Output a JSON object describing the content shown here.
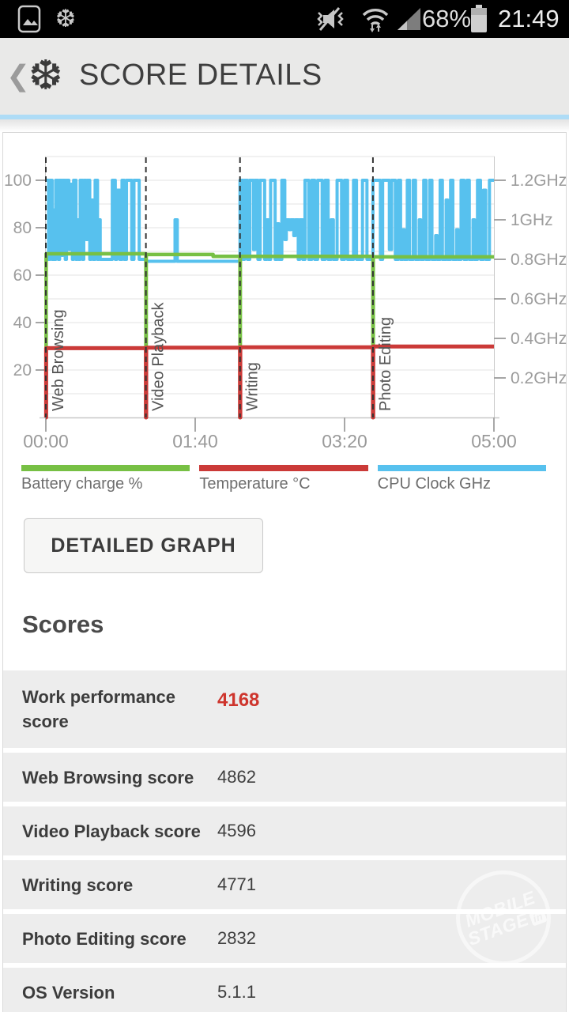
{
  "status_bar": {
    "time": "21:49",
    "battery": "68%"
  },
  "icons": {
    "back": "❮",
    "snowflake": "❆"
  },
  "header": {
    "title": "SCORE DETAILS"
  },
  "button": {
    "label": "DETAILED GRAPH"
  },
  "watermark": {
    "line1": "MOBILE",
    "line2": "STAGE",
    "badge": "in"
  },
  "scores": {
    "heading": "Scores",
    "rows": [
      {
        "label": "Work performance score",
        "value": "4168",
        "highlight": true
      },
      {
        "label": "Web Browsing score",
        "value": "4862",
        "highlight": false
      },
      {
        "label": "Video Playback score",
        "value": "4596",
        "highlight": false
      },
      {
        "label": "Writing score",
        "value": "4771",
        "highlight": false
      },
      {
        "label": "Photo Editing score",
        "value": "2832",
        "highlight": false
      },
      {
        "label": "OS Version",
        "value": "5.1.1",
        "highlight": false
      }
    ]
  },
  "chart_data": {
    "type": "line",
    "duration_s": 300,
    "x_ticks": [
      {
        "s": 0,
        "label": "00:00"
      },
      {
        "s": 100,
        "label": "01:40"
      },
      {
        "s": 200,
        "label": "03:20"
      },
      {
        "s": 300,
        "label": "05:00"
      }
    ],
    "y_left_ticks": [
      {
        "v": 100,
        "label": "100"
      },
      {
        "v": 80,
        "label": "80"
      },
      {
        "v": 60,
        "label": "60"
      },
      {
        "v": 40,
        "label": "40"
      },
      {
        "v": 20,
        "label": "20"
      }
    ],
    "y_right_ticks": [
      {
        "ghz": 1.2,
        "label": "1.2GHz"
      },
      {
        "ghz": 1.0,
        "label": "1GHz"
      },
      {
        "ghz": 0.8,
        "label": "0.8GHz"
      },
      {
        "ghz": 0.6,
        "label": "0.6GHz"
      },
      {
        "ghz": 0.4,
        "label": "0.4GHz"
      },
      {
        "ghz": 0.2,
        "label": "0.2GHz"
      }
    ],
    "phases": [
      {
        "label": "Web Browsing",
        "start_s": 0
      },
      {
        "label": "Video Playback",
        "start_s": 67
      },
      {
        "label": "Writing",
        "start_s": 130
      },
      {
        "label": "Photo Editing",
        "start_s": 219
      }
    ],
    "series": [
      {
        "name": "Battery charge %",
        "color": "#77c044",
        "axis": "left",
        "unit": "%",
        "runs": [
          [
            0,
            0.2,
            0
          ],
          [
            0.2,
            67,
            69
          ],
          [
            67,
            67.2,
            0
          ],
          [
            67.2,
            112,
            68.7
          ],
          [
            112,
            130,
            67.9
          ],
          [
            130,
            130.2,
            0
          ],
          [
            130.2,
            219,
            67.9
          ],
          [
            219,
            219.2,
            0
          ],
          [
            219.2,
            300,
            67.7
          ]
        ]
      },
      {
        "name": "Temperature °C",
        "color": "#cb3a38",
        "axis": "left",
        "unit": "°C",
        "runs": [
          [
            0,
            0.2,
            0
          ],
          [
            0.2,
            67,
            29.2
          ],
          [
            67,
            67.2,
            0
          ],
          [
            67.2,
            130,
            29.4
          ],
          [
            130,
            130.2,
            0
          ],
          [
            130.2,
            219,
            29.6
          ],
          [
            219,
            219.2,
            0
          ],
          [
            219.2,
            300,
            29.9
          ]
        ]
      },
      {
        "name": "CPU Clock GHz",
        "color": "#57c1ee",
        "axis": "right",
        "unit": "GHz",
        "runs": [
          [
            0,
            1.8,
            1.2
          ],
          [
            1.8,
            2.8,
            0.8
          ],
          [
            2.8,
            4.2,
            1.2
          ],
          [
            4.2,
            5,
            0.8
          ],
          [
            5,
            5.8,
            1.05
          ],
          [
            5.8,
            6.6,
            0.8
          ],
          [
            6.6,
            8.4,
            1.2
          ],
          [
            8.4,
            9.2,
            0.8
          ],
          [
            9.2,
            10.6,
            1.2
          ],
          [
            10.6,
            11.4,
            0.82
          ],
          [
            11.4,
            13,
            1.2
          ],
          [
            13,
            13.8,
            0.8
          ],
          [
            13.8,
            15.4,
            1.2
          ],
          [
            15.4,
            16.2,
            0.85
          ],
          [
            16.2,
            17.8,
            1.18
          ],
          [
            17.8,
            18.6,
            0.8
          ],
          [
            18.6,
            20.2,
            1.2
          ],
          [
            20.2,
            21,
            0.8
          ],
          [
            21,
            22,
            1.0
          ],
          [
            22,
            23,
            0.8
          ],
          [
            23,
            24.6,
            1.2
          ],
          [
            24.6,
            25.4,
            0.8
          ],
          [
            25.4,
            27,
            1.2
          ],
          [
            27,
            27.8,
            0.9
          ],
          [
            27.8,
            29.4,
            1.2
          ],
          [
            29.4,
            30.2,
            0.8
          ],
          [
            30.2,
            31.6,
            1.1
          ],
          [
            31.6,
            33,
            0.8
          ],
          [
            33,
            34.6,
            1.2
          ],
          [
            34.6,
            35.4,
            0.8
          ],
          [
            35.4,
            36.4,
            1.0
          ],
          [
            36.4,
            44.5,
            0.8
          ],
          [
            44.5,
            46.5,
            1.2
          ],
          [
            46.5,
            47.5,
            0.8
          ],
          [
            47.5,
            49.5,
            1.15
          ],
          [
            49.5,
            51,
            0.8
          ],
          [
            51,
            52.5,
            1.2
          ],
          [
            52.5,
            54,
            0.8
          ],
          [
            54,
            57.5,
            1.2
          ],
          [
            57.5,
            59,
            0.8
          ],
          [
            59,
            62.5,
            1.2
          ],
          [
            62.5,
            67,
            0.8
          ],
          [
            67,
            86.5,
            0.79
          ],
          [
            86.5,
            88,
            1.0
          ],
          [
            88,
            130,
            0.79
          ],
          [
            130,
            132,
            1.2
          ],
          [
            132,
            133,
            0.8
          ],
          [
            133,
            135,
            1.2
          ],
          [
            135,
            136.5,
            0.8
          ],
          [
            136.5,
            139,
            1.2
          ],
          [
            139,
            140,
            0.85
          ],
          [
            140,
            142,
            1.2
          ],
          [
            142,
            143.5,
            0.8
          ],
          [
            143.5,
            146.5,
            1.2
          ],
          [
            146.5,
            148,
            0.8
          ],
          [
            148,
            149,
            1.0
          ],
          [
            149,
            150.5,
            0.8
          ],
          [
            150.5,
            153.5,
            1.2
          ],
          [
            153.5,
            155,
            0.8
          ],
          [
            155,
            156,
            0.98
          ],
          [
            156,
            158,
            0.8
          ],
          [
            158,
            160,
            1.2
          ],
          [
            160,
            161,
            0.9
          ],
          [
            161,
            163,
            1.0
          ],
          [
            163,
            164,
            0.95
          ],
          [
            164,
            166,
            1.0
          ],
          [
            166,
            167,
            0.92
          ],
          [
            167,
            169,
            1.0
          ],
          [
            169,
            170,
            0.8
          ],
          [
            170,
            172,
            1.0
          ],
          [
            172,
            173.5,
            0.8
          ],
          [
            173.5,
            176,
            1.2
          ],
          [
            176,
            178,
            0.8
          ],
          [
            178,
            180,
            1.2
          ],
          [
            180,
            182,
            0.8
          ],
          [
            182,
            185,
            1.2
          ],
          [
            185,
            187,
            0.8
          ],
          [
            187,
            189,
            1.2
          ],
          [
            189,
            191,
            0.8
          ],
          [
            191,
            192.5,
            1.0
          ],
          [
            192.5,
            195,
            0.8
          ],
          [
            195,
            198,
            1.2
          ],
          [
            198,
            200,
            0.8
          ],
          [
            200,
            202,
            1.2
          ],
          [
            202,
            206,
            0.8
          ],
          [
            206,
            208,
            1.2
          ],
          [
            208,
            212,
            0.8
          ],
          [
            212,
            215,
            1.2
          ],
          [
            215,
            219,
            0.8
          ],
          [
            219,
            224,
            1.2
          ],
          [
            224,
            225.5,
            0.8
          ],
          [
            225.5,
            230,
            1.2
          ],
          [
            230,
            231.5,
            0.85
          ],
          [
            231.5,
            234,
            1.2
          ],
          [
            234,
            236,
            0.8
          ],
          [
            236,
            237.5,
            1.2
          ],
          [
            237.5,
            239,
            0.8
          ],
          [
            239,
            240,
            0.95
          ],
          [
            240,
            242,
            0.8
          ],
          [
            242,
            243.5,
            1.2
          ],
          [
            243.5,
            246,
            0.8
          ],
          [
            246,
            247.5,
            1.2
          ],
          [
            247.5,
            250,
            0.8
          ],
          [
            250,
            251,
            1.0
          ],
          [
            251,
            253,
            0.8
          ],
          [
            253,
            254.5,
            1.2
          ],
          [
            254.5,
            257,
            0.8
          ],
          [
            257,
            258.5,
            1.2
          ],
          [
            258.5,
            261,
            0.8
          ],
          [
            261,
            262,
            0.92
          ],
          [
            262,
            264,
            0.8
          ],
          [
            264,
            265.5,
            1.2
          ],
          [
            265.5,
            268,
            0.8
          ],
          [
            268,
            269,
            1.1
          ],
          [
            269,
            271,
            0.8
          ],
          [
            271,
            272.5,
            1.2
          ],
          [
            272.5,
            275,
            0.8
          ],
          [
            275,
            276,
            0.95
          ],
          [
            276,
            278,
            0.8
          ],
          [
            278,
            280,
            1.2
          ],
          [
            280,
            282,
            0.8
          ],
          [
            282,
            283.5,
            1.2
          ],
          [
            283.5,
            286,
            0.8
          ],
          [
            286,
            287,
            1.0
          ],
          [
            287,
            289,
            0.8
          ],
          [
            289,
            291,
            1.2
          ],
          [
            291,
            293,
            0.8
          ],
          [
            293,
            294.5,
            1.15
          ],
          [
            294.5,
            297,
            0.8
          ],
          [
            297,
            300,
            1.2
          ]
        ]
      }
    ]
  }
}
